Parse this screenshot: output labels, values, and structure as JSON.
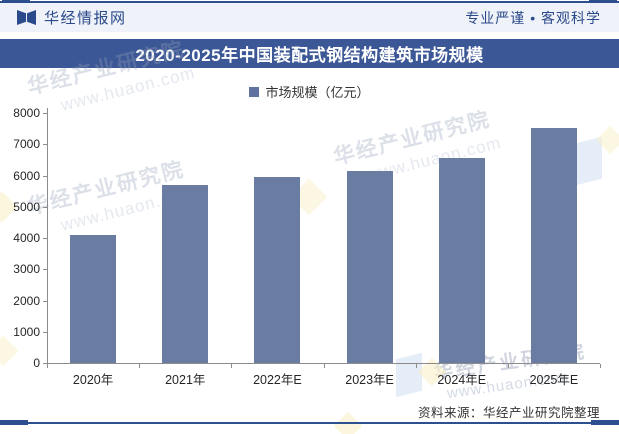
{
  "header": {
    "brand": "华经情报网",
    "slogan": "专业严谨 • 客观科学",
    "logo_icon": "open-book-logo"
  },
  "title_banner": {
    "text": "2020-2025年中国装配式钢结构建筑市场规模",
    "bg_color": "#3C5795",
    "text_color": "#FFFFFF"
  },
  "legend": {
    "label": "市场规模（亿元）",
    "swatch_color": "#5F72A0"
  },
  "chart_data": {
    "type": "bar",
    "title": "2020-2025年中国装配式钢结构建筑市场规模",
    "categories": [
      "2020年",
      "2021年",
      "2022年E",
      "2023年E",
      "2024年E",
      "2025年E"
    ],
    "values": [
      4100,
      5700,
      5950,
      6150,
      6550,
      7520
    ],
    "series_name": "市场规模（亿元）",
    "xlabel": "",
    "ylabel": "",
    "ylim": [
      0,
      8000
    ],
    "ytick_step": 1000,
    "grid": false,
    "legend_position": "top",
    "bar_color": "#6A7CA1"
  },
  "watermark": {
    "name": "华经产业研究院",
    "url": "www.huaon.com"
  },
  "source_note": "资料来源：华经产业研究院整理",
  "colors": {
    "accent_navy": "#2B4A8B",
    "border_line": "#2E4F8F",
    "banner_bg": "#3C5795",
    "header_bg": "#EFF2F8",
    "bar": "#6A7CA1",
    "axis": "#8C8C8C",
    "text": "#333333"
  }
}
